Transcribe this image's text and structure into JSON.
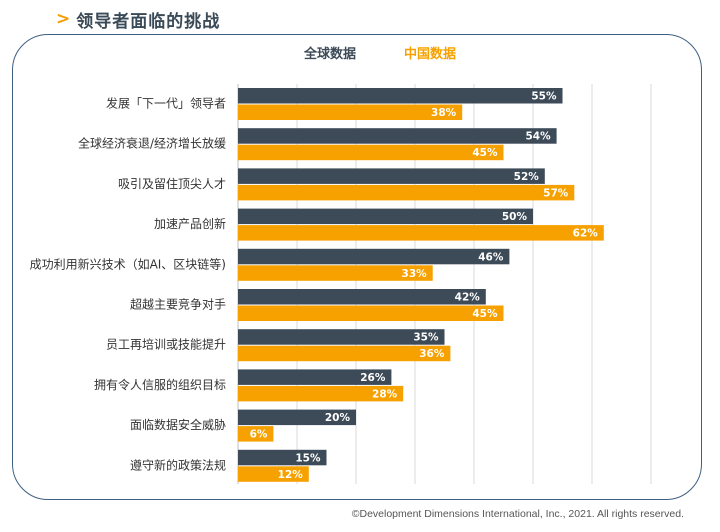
{
  "title": "领导者面临的挑战",
  "title_arrow": ">",
  "copyright": "©Development Dimensions International, Inc., 2021. All rights reserved.",
  "colors": {
    "global": "#3d4a57",
    "china": "#f7a100",
    "frame": "#3f5f80",
    "accent": "#f59c00"
  },
  "chart_data": {
    "type": "bar",
    "orientation": "horizontal",
    "categories": [
      "发展「下一代」领导者",
      "全球经济衰退/经济增长放缓",
      "吸引及留住顶尖人才",
      "加速产品创新",
      "成功利用新兴技术（如AI、区块链等)",
      "超越主要竞争对手",
      "员工再培训或技能提升",
      "拥有令人信服的组织目标",
      "面临数据安全威胁",
      "遵守新的政策法规"
    ],
    "series": [
      {
        "name": "全球数据",
        "values": [
          55,
          54,
          52,
          50,
          46,
          42,
          35,
          26,
          20,
          15
        ],
        "labels": [
          "55%",
          "54%",
          "52%",
          "50%",
          "46%",
          "42%",
          "35%",
          "26%",
          "20%",
          "15%"
        ]
      },
      {
        "name": "中国数据",
        "values": [
          38,
          45,
          57,
          62,
          33,
          45,
          36,
          28,
          6,
          12
        ],
        "labels": [
          "38%",
          "45%",
          "57%",
          "62%",
          "33%",
          "45%",
          "36%",
          "28%",
          "6%",
          "12%"
        ]
      }
    ],
    "xlim": [
      0,
      70
    ],
    "grid": true,
    "legend_position": "top"
  }
}
